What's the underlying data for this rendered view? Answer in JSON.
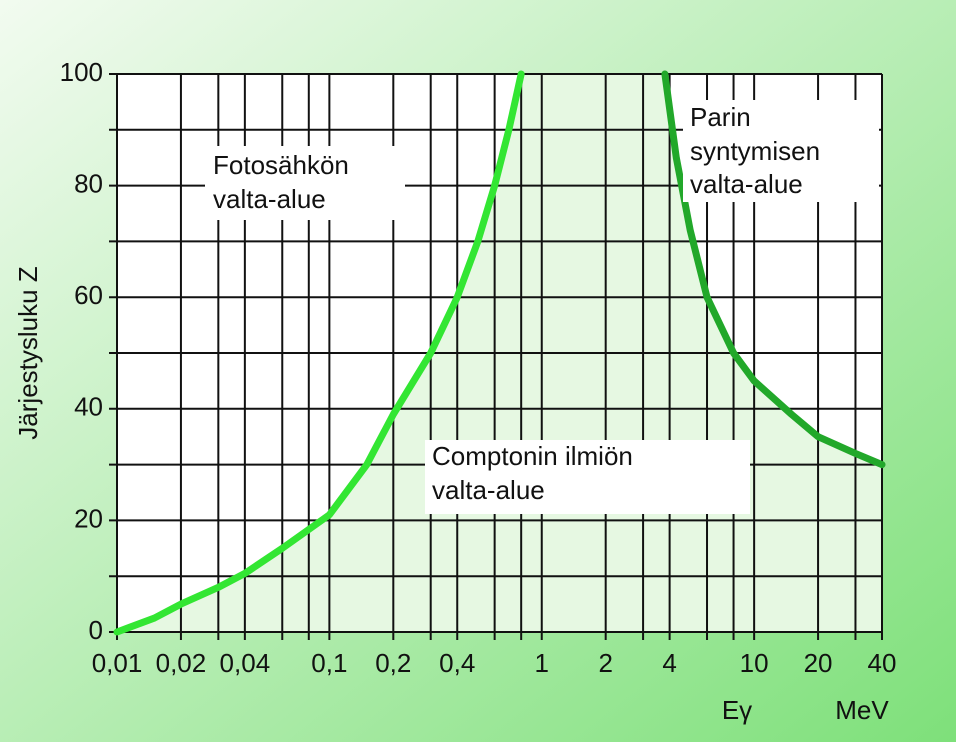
{
  "chart_data": {
    "type": "line",
    "ylabel": "Järjestysluku Z",
    "xlabel": "Eγ",
    "xunit": "MeV",
    "xscale": "log",
    "xlim": [
      0.01,
      40
    ],
    "ylim": [
      0,
      100
    ],
    "xticks": [
      {
        "value": 0.01,
        "label": "0,01"
      },
      {
        "value": 0.02,
        "label": "0,02"
      },
      {
        "value": 0.04,
        "label": "0,04"
      },
      {
        "value": 0.1,
        "label": "0,1"
      },
      {
        "value": 0.2,
        "label": "0,2"
      },
      {
        "value": 0.4,
        "label": "0,4"
      },
      1,
      2,
      4,
      10,
      20,
      40
    ],
    "yticks": [
      0,
      20,
      40,
      60,
      80,
      100
    ],
    "xgrid": [
      0.01,
      0.02,
      0.03,
      0.04,
      0.06,
      0.08,
      0.1,
      0.2,
      0.3,
      0.4,
      0.6,
      0.8,
      1,
      2,
      3,
      4,
      6,
      8,
      10,
      20,
      30,
      40
    ],
    "ygrid": [
      0,
      10,
      20,
      30,
      40,
      50,
      60,
      70,
      80,
      90,
      100
    ],
    "series": [
      {
        "color": "#33e633",
        "x": [
          0.01,
          0.015,
          0.02,
          0.03,
          0.04,
          0.06,
          0.1,
          0.15,
          0.2,
          0.3,
          0.4,
          0.5,
          0.6,
          0.7,
          0.8
        ],
        "values": [
          0,
          2.5,
          5,
          8,
          10.5,
          15,
          21,
          30,
          39,
          50,
          60,
          70,
          80,
          90,
          100
        ]
      },
      {
        "color": "#22a82a",
        "x": [
          3.8,
          4.3,
          5,
          6,
          8,
          10,
          15,
          20,
          30,
          40
        ],
        "values": [
          100,
          85,
          72,
          60,
          50,
          45,
          39,
          35,
          32,
          30
        ]
      }
    ],
    "annotations": {
      "photo": [
        "Fotosähkön",
        "valta-alue"
      ],
      "pair": [
        "Parin",
        "syntymisen",
        "valta-alue"
      ],
      "compton": [
        "Comptonin ilmiön",
        "valta-alue"
      ]
    }
  }
}
